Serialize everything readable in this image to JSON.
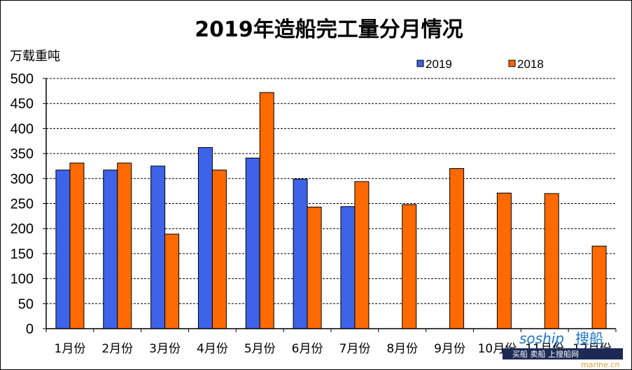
{
  "chart_data": {
    "type": "bar",
    "title": "2019年造船完工量分月情况",
    "ylabel": "万载重吨",
    "xlabel": "",
    "ylim": [
      0,
      500
    ],
    "yticks": [
      "0",
      "50",
      "100",
      "150",
      "200",
      "250",
      "300",
      "350",
      "400",
      "450",
      "500"
    ],
    "grid": true,
    "legend_position": "top-right",
    "categories": [
      "1月份",
      "2月份",
      "3月份",
      "4月份",
      "5月份",
      "6月份",
      "7月份",
      "8月份",
      "9月份",
      "10月份",
      "11月份",
      "12月份"
    ],
    "series": [
      {
        "name": "2019",
        "color": "#3d63e8",
        "values": [
          317,
          317,
          325,
          362,
          341,
          299,
          244,
          null,
          null,
          null,
          null,
          null
        ]
      },
      {
        "name": "2018",
        "color": "#ff6a00",
        "values": [
          331,
          331,
          189,
          317,
          472,
          243,
          294,
          248,
          320,
          271,
          270,
          165
        ]
      }
    ]
  },
  "watermark": {
    "brand": "soship",
    "brand_cn": "搜船",
    "tagline": "买船 卖船 上搜船网",
    "faint": "marine.cn"
  }
}
